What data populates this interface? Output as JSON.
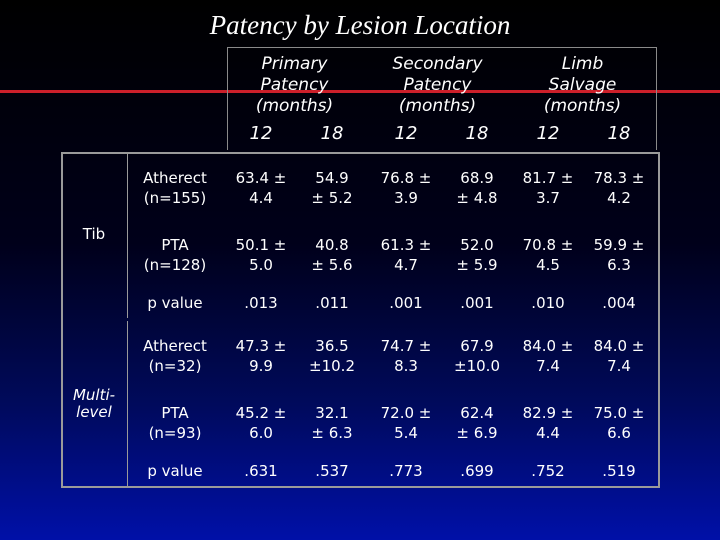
{
  "title": "Patency by Lesion Location",
  "headers": [
    {
      "lines": [
        "Primary",
        "Patency",
        "(months)"
      ]
    },
    {
      "lines": [
        "Secondary",
        "Patency",
        "(months)"
      ]
    },
    {
      "lines": [
        "Limb",
        "Salvage",
        "(months)"
      ]
    }
  ],
  "months": [
    "12",
    "18",
    "12",
    "18",
    "12",
    "18"
  ],
  "groups": [
    {
      "label": "Tib",
      "rows": [
        {
          "label": [
            "Atherect",
            "(n=155)"
          ],
          "cells": [
            [
              "63.4 ±",
              "4.4"
            ],
            [
              "54.9",
              "± 5.2"
            ],
            [
              "76.8 ±",
              "3.9"
            ],
            [
              "68.9",
              "± 4.8"
            ],
            [
              "81.7 ±",
              "3.7"
            ],
            [
              "78.3 ±",
              "4.2"
            ]
          ]
        },
        {
          "label": [
            "PTA",
            "(n=128)"
          ],
          "cells": [
            [
              "50.1 ±",
              "5.0"
            ],
            [
              "40.8",
              "± 5.6"
            ],
            [
              "61.3 ±",
              "4.7"
            ],
            [
              "52.0",
              "± 5.9"
            ],
            [
              "70.8 ±",
              "4.5"
            ],
            [
              "59.9 ±",
              "6.3"
            ]
          ]
        },
        {
          "label": [
            "p value"
          ],
          "cells": [
            [
              ".013"
            ],
            [
              ".011"
            ],
            [
              ".001"
            ],
            [
              ".001"
            ],
            [
              ".010"
            ],
            [
              ".004"
            ]
          ]
        }
      ]
    },
    {
      "label": "Multi-level",
      "label_lines": [
        "Multi-",
        "level"
      ],
      "rows": [
        {
          "label": [
            "Atherect",
            "(n=32)"
          ],
          "cells": [
            [
              "47.3 ±",
              "9.9"
            ],
            [
              "36.5",
              "±10.2"
            ],
            [
              "74.7 ±",
              "8.3"
            ],
            [
              "67.9",
              "±10.0"
            ],
            [
              "84.0 ±",
              "7.4"
            ],
            [
              "84.0 ±",
              "7.4"
            ]
          ]
        },
        {
          "label": [
            "PTA",
            "(n=93)"
          ],
          "cells": [
            [
              "45.2 ±",
              "6.0"
            ],
            [
              "32.1",
              "± 6.3"
            ],
            [
              "72.0 ±",
              "5.4"
            ],
            [
              "62.4",
              "± 6.9"
            ],
            [
              "82.9 ±",
              "4.4"
            ],
            [
              "75.0 ±",
              "6.6"
            ]
          ]
        },
        {
          "label": [
            "p value"
          ],
          "cells": [
            [
              ".631"
            ],
            [
              ".537"
            ],
            [
              ".773"
            ],
            [
              ".699"
            ],
            [
              ".752"
            ],
            [
              ".519"
            ]
          ]
        }
      ]
    }
  ],
  "colors": {
    "accent_line": "#cc1f2a",
    "border": "#9a9a9a",
    "text": "#ffffff"
  }
}
